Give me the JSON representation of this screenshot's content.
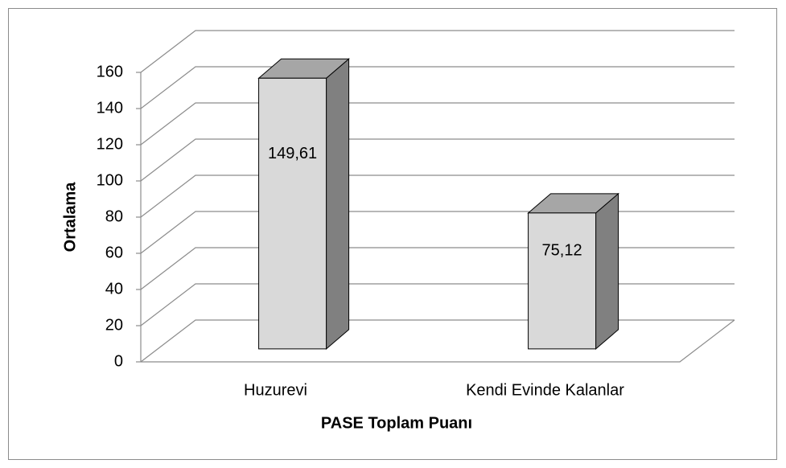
{
  "chart_data": {
    "type": "bar3d",
    "categories": [
      "Huzurevi",
      "Kendi Evinde Kalanlar"
    ],
    "values": [
      149.61,
      75.12
    ],
    "value_labels": [
      "149,61",
      "75,12"
    ],
    "x_label": "PASE Toplam Puanı",
    "y_label": "Ortalama",
    "ylim": [
      0,
      160
    ],
    "yticks": [
      0,
      20,
      40,
      60,
      80,
      100,
      120,
      140,
      160
    ],
    "grid": true,
    "colors": {
      "front": "#d9d9d9",
      "side": "#808080",
      "top": "#a6a6a6"
    }
  }
}
